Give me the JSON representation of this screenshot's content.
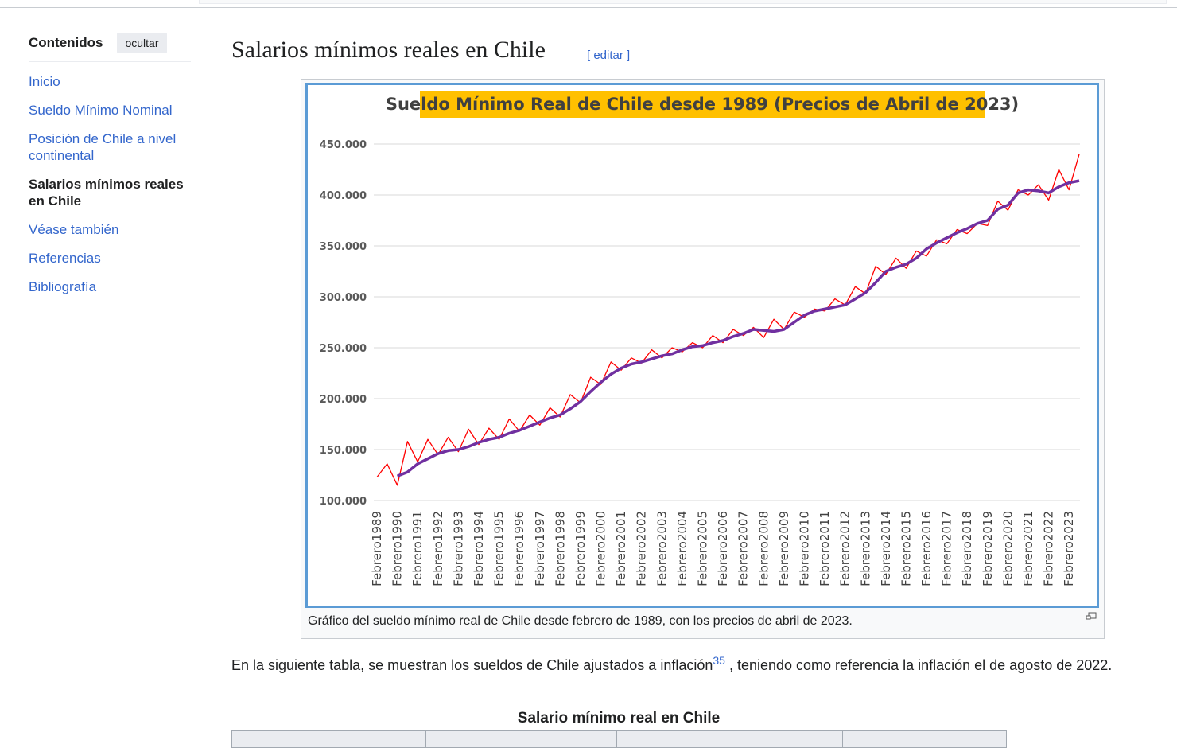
{
  "sidebar": {
    "title": "Contenidos",
    "toggle": "ocultar",
    "items": [
      "Inicio",
      "Sueldo Mínimo Nominal",
      "Posición de Chile a nivel continental",
      "Salarios mínimos reales en Chile",
      "Véase también",
      "Referencias",
      "Bibliografía"
    ]
  },
  "heading": {
    "title": "Salarios mínimos reales en Chile",
    "edit": "[ editar ]"
  },
  "chart_data": {
    "type": "line",
    "title": "Sueldo Mínimo Real de Chile desde 1989 (Precios de Abril de 2023)",
    "categories": [
      "Febrero1989",
      null,
      "Febrero1990",
      null,
      "Febrero1991",
      null,
      "Febrero1992",
      null,
      "Febrero1993",
      null,
      "Febrero1994",
      null,
      "Febrero1995",
      null,
      "Febrero1996",
      null,
      "Febrero1997",
      null,
      "Febrero1998",
      null,
      "Febrero1999",
      null,
      "Febrero2000",
      null,
      "Febrero2001",
      null,
      "Febrero2002",
      null,
      "Febrero2003",
      null,
      "Febrero2004",
      null,
      "Febrero2005",
      null,
      "Febrero2006",
      null,
      "Febrero2007",
      null,
      "Febrero2008",
      null,
      "Febrero2009",
      null,
      "Febrero2010",
      null,
      "Febrero2011",
      null,
      "Febrero2012",
      null,
      "Febrero2013",
      null,
      "Febrero2014",
      null,
      "Febrero2015",
      null,
      "Febrero2016",
      null,
      "Febrero2017",
      null,
      "Febrero2018",
      null,
      "Febrero2019",
      null,
      "Febrero2020",
      null,
      "Febrero2021",
      null,
      "Febrero2022",
      null,
      "Febrero2023",
      null
    ],
    "series": [
      {
        "color": "#ff0000",
        "values": [
          123000,
          136000,
          115000,
          158000,
          138000,
          160000,
          145000,
          162000,
          148000,
          170000,
          155000,
          171000,
          160000,
          180000,
          168000,
          184000,
          174000,
          191000,
          182000,
          204000,
          196000,
          221000,
          214000,
          236000,
          228000,
          240000,
          235000,
          248000,
          240000,
          250000,
          246000,
          255000,
          250000,
          262000,
          255000,
          268000,
          262000,
          270000,
          260000,
          278000,
          268000,
          285000,
          280000,
          288000,
          286000,
          298000,
          292000,
          310000,
          303000,
          330000,
          322000,
          338000,
          328000,
          345000,
          340000,
          356000,
          352000,
          366000,
          362000,
          372000,
          370000,
          394000,
          385000,
          405000,
          400000,
          410000,
          395000,
          425000,
          405000,
          440000
        ]
      },
      {
        "color": "#7030a0",
        "values": [
          null,
          null,
          124000,
          128000,
          136000,
          141000,
          146000,
          149000,
          150000,
          153000,
          157000,
          160000,
          162000,
          166000,
          169000,
          173000,
          177000,
          181000,
          184000,
          190000,
          197000,
          207000,
          216000,
          224000,
          230000,
          234000,
          236000,
          239000,
          242000,
          244000,
          248000,
          251000,
          252000,
          255000,
          257000,
          261000,
          264000,
          268000,
          267000,
          266000,
          268000,
          275000,
          282000,
          286000,
          288000,
          290000,
          292000,
          298000,
          304000,
          314000,
          325000,
          329000,
          332000,
          338000,
          347000,
          353000,
          358000,
          363000,
          367000,
          372000,
          375000,
          386000,
          390000,
          402000,
          405000,
          404000,
          402000,
          408000,
          412000,
          414000
        ]
      }
    ],
    "ylim": [
      100000,
      450000
    ],
    "yticks": [
      {
        "value": 100000,
        "label": "100.000"
      },
      {
        "value": 150000,
        "label": "150.000"
      },
      {
        "value": 200000,
        "label": "200.000"
      },
      {
        "value": 250000,
        "label": "250.000"
      },
      {
        "value": 300000,
        "label": "300.000"
      },
      {
        "value": 350000,
        "label": "350.000"
      },
      {
        "value": 400000,
        "label": "400.000"
      },
      {
        "value": 450000,
        "label": "450.000"
      }
    ],
    "grid": true
  },
  "caption": "Gráfico del sueldo mínimo real de Chile desde febrero de 1989, con los precios de abril de 2023.",
  "paragraph": {
    "text1": "En la siguiente tabla, se muestran los sueldos de Chile ajustados a inflación",
    "ref": "35",
    "text2": " , teniendo como referencia la inflación el de agosto de 2022."
  },
  "table": {
    "caption": "Salario mínimo real en Chile"
  }
}
